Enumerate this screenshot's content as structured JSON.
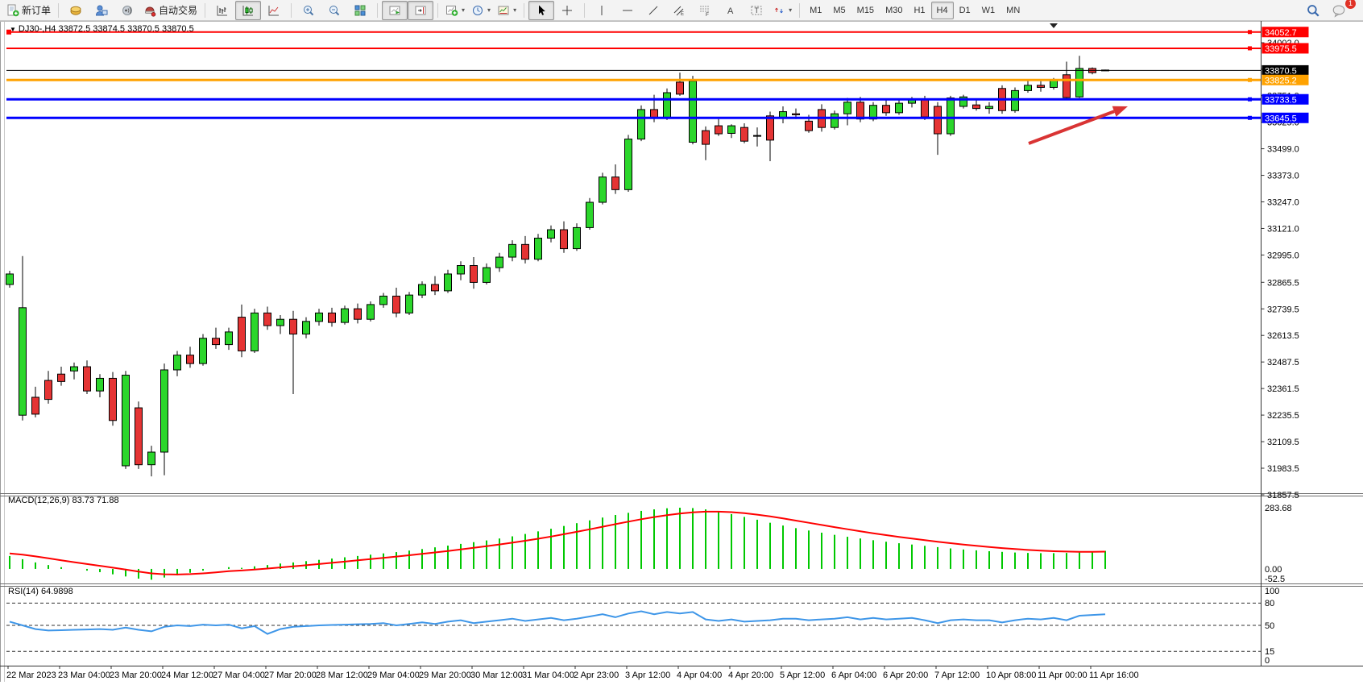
{
  "toolbar": {
    "new_order_label": "新订单",
    "autotrading_label": "自动交易",
    "timeframes": [
      "M1",
      "M5",
      "M15",
      "M30",
      "H1",
      "H4",
      "D1",
      "W1",
      "MN"
    ],
    "active_timeframe": "H4",
    "chat_badge": "1",
    "icon_names": [
      "new-order-icon",
      "history-icon",
      "profile-icon",
      "signals-icon",
      "autotrading-icon",
      "bar-chart-icon",
      "candlestick-chart-icon",
      "line-chart-icon",
      "zoom-in-icon",
      "zoom-out-icon",
      "tile-windows-icon",
      "auto-scroll-icon",
      "chart-shift-icon",
      "indicators-icon",
      "periods-icon",
      "templates-icon",
      "cursor-icon",
      "crosshair-icon",
      "vertical-line-icon",
      "horizontal-line-icon",
      "trendline-icon",
      "equidistant-channel-icon",
      "fibonacci-icon",
      "text-icon",
      "text-label-icon",
      "arrows-icon",
      "search-icon",
      "chat-icon"
    ]
  },
  "chart": {
    "title": {
      "dropdown_glyph": "▼",
      "symbol_period": "DJ30-,H4",
      "open": "33872.5",
      "high": "33874.5",
      "low": "33870.5",
      "close": "33870.5"
    },
    "price_scale_ticks": [
      "34002.0",
      "33876.0",
      "33751.0",
      "33625.0",
      "33499.0",
      "33373.0",
      "33247.0",
      "33121.0",
      "32995.0",
      "32865.5",
      "32739.5",
      "32613.5",
      "32487.5",
      "32361.5",
      "32235.5",
      "32109.5",
      "31983.5",
      "31857.5"
    ],
    "levels": [
      {
        "price": 34052.7,
        "label": "34052.7",
        "color": "#FF0000",
        "width": 2
      },
      {
        "price": 33975.5,
        "label": "33975.5",
        "color": "#FF0000",
        "width": 2
      },
      {
        "price": 33870.5,
        "label": "33870.5",
        "color": "#000000",
        "width": 1
      },
      {
        "price": 33825.2,
        "label": "33825.2",
        "color": "#FFA200",
        "width": 3
      },
      {
        "price": 33733.5,
        "label": "33733.5",
        "color": "#0000FF",
        "width": 3
      },
      {
        "price": 33645.5,
        "label": "33645.5",
        "color": "#0000FF",
        "width": 3
      }
    ],
    "colors": {
      "up": "#2BD62B",
      "down": "#E53434",
      "outline": "#000000",
      "macd_hist": "#00C800",
      "macd_signal": "#FF0000",
      "rsi_line": "#3E96E8",
      "arrow": "#D93434"
    }
  },
  "indicators": {
    "macd_label": "MACD(12,26,9) 83.73 71.88",
    "macd_axis": [
      "283.68",
      "0.00",
      "-52.5"
    ],
    "rsi_label": "RSI(14) 64.9898",
    "rsi_axis": [
      "100",
      "80",
      "50",
      "15",
      "0"
    ],
    "rsi_levels": [
      80,
      50,
      15
    ]
  },
  "chart_data": [
    {
      "type": "candlestick",
      "symbol": "DJ30-",
      "period": "H4",
      "ylim": [
        31865,
        34090
      ],
      "x_labels": [
        "22 Mar 2023",
        "23 Mar 04:00",
        "23 Mar 20:00",
        "24 Mar 12:00",
        "27 Mar 04:00",
        "27 Mar 20:00",
        "28 Mar 12:00",
        "29 Mar 04:00",
        "29 Mar 20:00",
        "30 Mar 12:00",
        "31 Mar 04:00",
        "2 Apr 23:00",
        "3 Apr 12:00",
        "4 Apr 04:00",
        "4 Apr 20:00",
        "5 Apr 12:00",
        "6 Apr 04:00",
        "6 Apr 20:00",
        "7 Apr 12:00",
        "10 Apr 08:00",
        "11 Apr 00:00",
        "11 Apr 16:00"
      ],
      "candles": [
        [
          32855,
          32920,
          32840,
          32905
        ],
        [
          32235,
          32990,
          32210,
          32745
        ],
        [
          32320,
          32370,
          32225,
          32240
        ],
        [
          32400,
          32445,
          32290,
          32310
        ],
        [
          32430,
          32465,
          32375,
          32395
        ],
        [
          32445,
          32485,
          32405,
          32465
        ],
        [
          32465,
          32495,
          32335,
          32350
        ],
        [
          32350,
          32430,
          32320,
          32410
        ],
        [
          32410,
          32440,
          32185,
          32210
        ],
        [
          31995,
          32445,
          31980,
          32425
        ],
        [
          32270,
          32300,
          31980,
          32000
        ],
        [
          32000,
          32090,
          31945,
          32060
        ],
        [
          32060,
          32480,
          31950,
          32450
        ],
        [
          32450,
          32540,
          32420,
          32520
        ],
        [
          32520,
          32560,
          32460,
          32480
        ],
        [
          32480,
          32620,
          32470,
          32600
        ],
        [
          32600,
          32650,
          32550,
          32570
        ],
        [
          32570,
          32650,
          32545,
          32630
        ],
        [
          32700,
          32760,
          32510,
          32540
        ],
        [
          32540,
          32740,
          32530,
          32720
        ],
        [
          32720,
          32750,
          32640,
          32660
        ],
        [
          32660,
          32710,
          32620,
          32690
        ],
        [
          32690,
          32730,
          32335,
          32620
        ],
        [
          32620,
          32700,
          32600,
          32680
        ],
        [
          32680,
          32740,
          32660,
          32720
        ],
        [
          32720,
          32745,
          32655,
          32675
        ],
        [
          32675,
          32755,
          32665,
          32740
        ],
        [
          32740,
          32765,
          32670,
          32690
        ],
        [
          32690,
          32775,
          32680,
          32760
        ],
        [
          32760,
          32815,
          32745,
          32800
        ],
        [
          32800,
          32840,
          32700,
          32720
        ],
        [
          32720,
          32820,
          32710,
          32805
        ],
        [
          32805,
          32870,
          32790,
          32855
        ],
        [
          32855,
          32895,
          32805,
          32825
        ],
        [
          32825,
          32925,
          32815,
          32905
        ],
        [
          32905,
          32965,
          32875,
          32945
        ],
        [
          32945,
          32985,
          32835,
          32865
        ],
        [
          32865,
          32955,
          32855,
          32935
        ],
        [
          32935,
          33005,
          32915,
          32985
        ],
        [
          32985,
          33065,
          32965,
          33045
        ],
        [
          33045,
          33085,
          32955,
          32975
        ],
        [
          32975,
          33095,
          32965,
          33075
        ],
        [
          33075,
          33135,
          33055,
          33115
        ],
        [
          33115,
          33155,
          33005,
          33025
        ],
        [
          33025,
          33145,
          33015,
          33125
        ],
        [
          33125,
          33265,
          33115,
          33245
        ],
        [
          33245,
          33385,
          33235,
          33365
        ],
        [
          33365,
          33425,
          33285,
          33305
        ],
        [
          33305,
          33565,
          33295,
          33545
        ],
        [
          33545,
          33705,
          33535,
          33685
        ],
        [
          33685,
          33755,
          33625,
          33645
        ],
        [
          33645,
          33785,
          33635,
          33765
        ],
        [
          33815,
          33860,
          33750,
          33758
        ],
        [
          33530,
          33845,
          33520,
          33820
        ],
        [
          33585,
          33605,
          33445,
          33520
        ],
        [
          33608,
          33640,
          33560,
          33570
        ],
        [
          33572,
          33615,
          33550,
          33608
        ],
        [
          33600,
          33620,
          33525,
          33535
        ],
        [
          33560,
          33600,
          33510,
          33562
        ],
        [
          33655,
          33675,
          33440,
          33540
        ],
        [
          33645,
          33700,
          33620,
          33675
        ],
        [
          33665,
          33690,
          33640,
          33660
        ],
        [
          33630,
          33660,
          33575,
          33585
        ],
        [
          33685,
          33710,
          33580,
          33600
        ],
        [
          33600,
          33680,
          33590,
          33665
        ],
        [
          33665,
          33740,
          33610,
          33720
        ],
        [
          33720,
          33745,
          33625,
          33640
        ],
        [
          33640,
          33720,
          33630,
          33705
        ],
        [
          33705,
          33735,
          33655,
          33670
        ],
        [
          33670,
          33730,
          33660,
          33715
        ],
        [
          33715,
          33745,
          33695,
          33735
        ],
        [
          33735,
          33750,
          33635,
          33650
        ],
        [
          33700,
          33720,
          33470,
          33570
        ],
        [
          33570,
          33750,
          33560,
          33740
        ],
        [
          33700,
          33755,
          33690,
          33745
        ],
        [
          33707,
          33730,
          33680,
          33690
        ],
        [
          33690,
          33720,
          33665,
          33700
        ],
        [
          33785,
          33800,
          33665,
          33680
        ],
        [
          33680,
          33790,
          33670,
          33775
        ],
        [
          33775,
          33830,
          33765,
          33800
        ],
        [
          33800,
          33820,
          33770,
          33790
        ],
        [
          33790,
          33835,
          33780,
          33825
        ],
        [
          33850,
          33912,
          33730,
          33742
        ],
        [
          33745,
          33940,
          33740,
          33880
        ],
        [
          33880,
          33885,
          33852,
          33860
        ],
        [
          33872.5,
          33874.5,
          33870.5,
          33870.5
        ]
      ]
    },
    {
      "type": "bar",
      "name": "MACD(12,26,9)",
      "ylim": [
        -52.5,
        283.68
      ],
      "current_main": 83.73,
      "current_signal": 71.88,
      "values": [
        60,
        45,
        30,
        18,
        8,
        0,
        -8,
        -15,
        -25,
        -35,
        -45,
        -50,
        -40,
        -30,
        -18,
        -8,
        0,
        8,
        5,
        12,
        18,
        25,
        30,
        36,
        42,
        48,
        54,
        60,
        66,
        72,
        78,
        85,
        92,
        100,
        108,
        116,
        124,
        132,
        141,
        151,
        162,
        174,
        186,
        199,
        212,
        225,
        238,
        250,
        260,
        269,
        276,
        281,
        283.68,
        282,
        276,
        266,
        254,
        241,
        228,
        214,
        201,
        189,
        178,
        168,
        158,
        149,
        141,
        133,
        126,
        119,
        113,
        107,
        101,
        95,
        90,
        86,
        82,
        79,
        76,
        74,
        73,
        73,
        74,
        76,
        79,
        83.73
      ]
    },
    {
      "type": "line",
      "name": "RSI(14)",
      "ylim": [
        0,
        100
      ],
      "levels": [
        80,
        50,
        15
      ],
      "current": 64.9898,
      "values": [
        55,
        50,
        45,
        43,
        43.5,
        44,
        44.5,
        45,
        44,
        47,
        44,
        42,
        48,
        50,
        49,
        51,
        50,
        51,
        46,
        49,
        38.5,
        45,
        48,
        49,
        50,
        50.5,
        51,
        51.5,
        52,
        53,
        50,
        52,
        54,
        52,
        55,
        57,
        53,
        55,
        57,
        59,
        56,
        58,
        60,
        57,
        59,
        62,
        65,
        61,
        66,
        69,
        65,
        68,
        66,
        68,
        58,
        56,
        58,
        55,
        56,
        57,
        59,
        59,
        57,
        58,
        59,
        61,
        58,
        60,
        58,
        59,
        60,
        57,
        53,
        57,
        58,
        57,
        57,
        54,
        57,
        59,
        58,
        60,
        57,
        63,
        64,
        64.99
      ]
    }
  ],
  "annotations": [
    {
      "type": "arrow",
      "from": [
        1277,
        152
      ],
      "to": [
        1400,
        106
      ]
    }
  ]
}
